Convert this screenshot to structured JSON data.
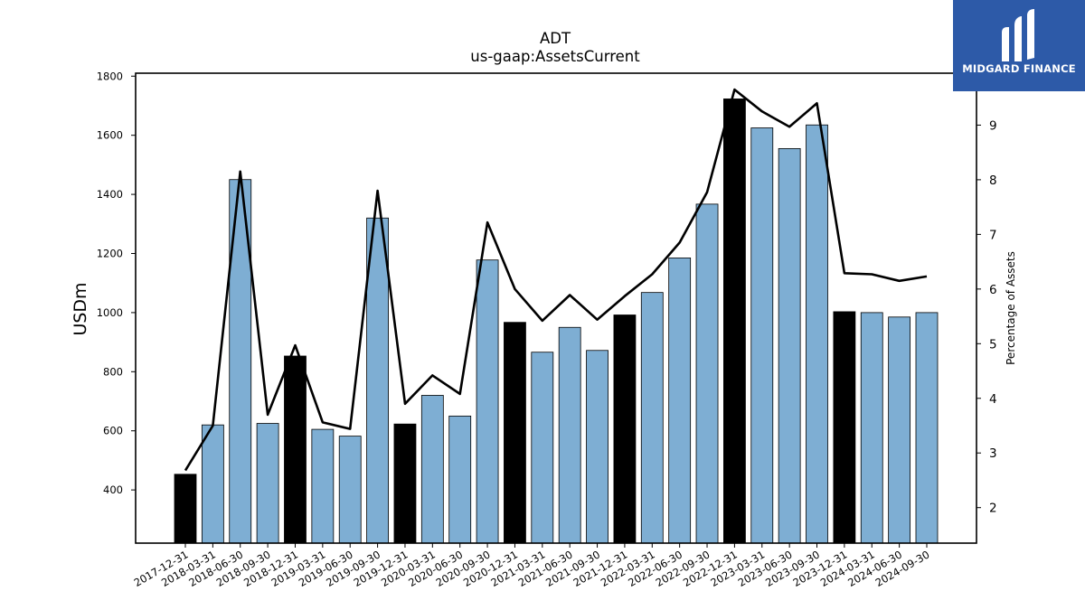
{
  "logo": {
    "text": "MIDGARD FINANCE",
    "icon": "midgard-logo-icon",
    "bg_color": "#2d5aa8"
  },
  "chart_data": {
    "type": "bar",
    "title": "ADT",
    "subtitle": "us-gaap:AssetsCurrent",
    "ylabel": "USDm",
    "y2label": "Percentage of Assets",
    "ylim": [
      220,
      1810
    ],
    "y2lim": [
      1.35,
      9.95
    ],
    "yticks": [
      400,
      600,
      800,
      1000,
      1200,
      1400,
      1600,
      1800
    ],
    "y2ticks": [
      2,
      3,
      4,
      5,
      6,
      7,
      8,
      9
    ],
    "grid": false,
    "bar_colors": {
      "annual": "#000000",
      "quarterly": "#7eaed3",
      "edge": "#000000"
    },
    "line_color": "#000000",
    "categories": [
      "2017-12-31",
      "2018-03-31",
      "2018-06-30",
      "2018-09-30",
      "2018-12-31",
      "2019-03-31",
      "2019-06-30",
      "2019-09-30",
      "2019-12-31",
      "2020-03-31",
      "2020-06-30",
      "2020-09-30",
      "2020-12-31",
      "2021-03-31",
      "2021-06-30",
      "2021-09-30",
      "2021-12-31",
      "2022-03-31",
      "2022-06-30",
      "2022-09-30",
      "2022-12-31",
      "2023-03-31",
      "2023-06-30",
      "2023-09-30",
      "2023-12-31",
      "2024-03-31",
      "2024-06-30",
      "2024-09-30"
    ],
    "annual": [
      true,
      false,
      false,
      false,
      true,
      false,
      false,
      false,
      true,
      false,
      false,
      false,
      true,
      false,
      false,
      false,
      true,
      false,
      false,
      false,
      true,
      false,
      false,
      false,
      true,
      false,
      false,
      false
    ],
    "series": [
      {
        "name": "AssetsCurrent",
        "axis": "left",
        "kind": "bar",
        "values": [
          453,
          620,
          1450,
          625,
          853,
          605,
          582,
          1320,
          623,
          720,
          650,
          1178,
          967,
          866,
          950,
          872,
          992,
          1068,
          1185,
          1367,
          1723,
          1625,
          1555,
          1635,
          1003,
          1000,
          985,
          1000
        ]
      },
      {
        "name": "Percentage of Assets",
        "axis": "right",
        "kind": "line",
        "values": [
          2.68,
          3.5,
          8.15,
          3.7,
          4.97,
          3.56,
          3.44,
          7.8,
          3.9,
          4.42,
          4.08,
          7.22,
          6.0,
          5.42,
          5.89,
          5.44,
          5.87,
          6.27,
          6.85,
          7.77,
          9.65,
          9.25,
          8.97,
          9.4,
          6.29,
          6.27,
          6.15,
          6.23
        ]
      }
    ]
  }
}
